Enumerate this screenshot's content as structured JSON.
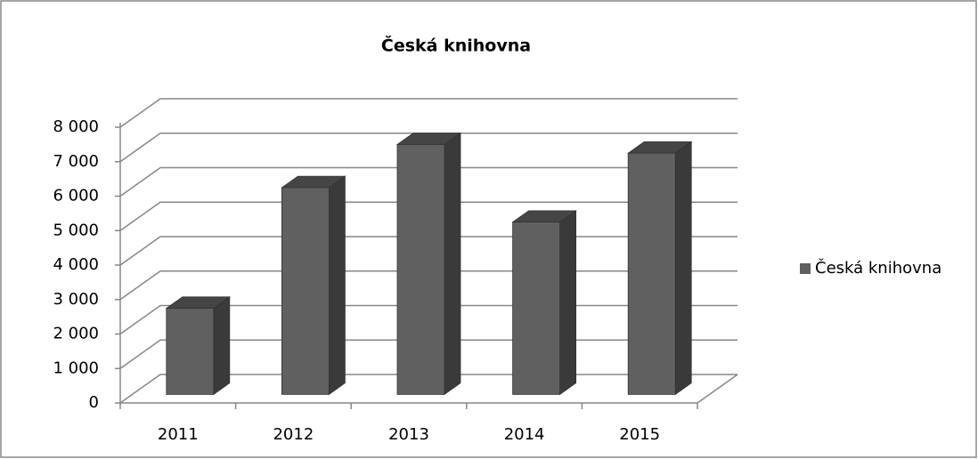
{
  "chart_data": {
    "type": "bar",
    "title": "Česká knihovna",
    "categories": [
      "2011",
      "2012",
      "2013",
      "2014",
      "2015"
    ],
    "series": [
      {
        "name": "Česká knihovna",
        "color": "#606060",
        "values": [
          2500,
          6000,
          7250,
          5000,
          7000
        ]
      }
    ],
    "ylim": [
      0,
      8000
    ],
    "yticks": [
      {
        "value": 0,
        "label": "0"
      },
      {
        "value": 1000,
        "label": "1 000"
      },
      {
        "value": 2000,
        "label": "2 000"
      },
      {
        "value": 3000,
        "label": "3 000"
      },
      {
        "value": 4000,
        "label": "4 000"
      },
      {
        "value": 5000,
        "label": "5 000"
      },
      {
        "value": 6000,
        "label": "6 000"
      },
      {
        "value": 7000,
        "label": "7 000"
      },
      {
        "value": 8000,
        "label": "8 000"
      }
    ],
    "grid": true,
    "legend": "right"
  }
}
